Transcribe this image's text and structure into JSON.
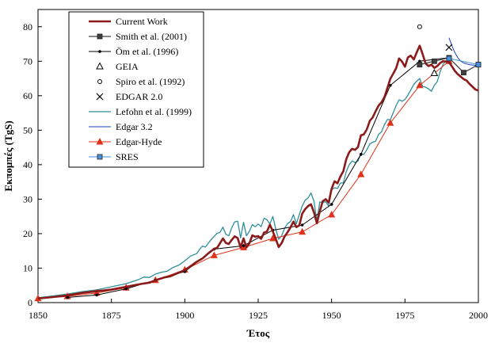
{
  "chart_data": {
    "type": "line",
    "title": "",
    "xlabel": "Έτος",
    "ylabel": "Εκπομπές (TgS)",
    "xlim": [
      1850,
      2000
    ],
    "ylim": [
      0,
      85
    ],
    "xticks": [
      1850,
      1875,
      1900,
      1925,
      1950,
      1975,
      2000
    ],
    "yticks": [
      0,
      10,
      20,
      30,
      40,
      50,
      60,
      70,
      80
    ],
    "grid": false,
    "legend_position": "top-left",
    "series": [
      {
        "name": "Current Work",
        "color": "#8b1a1a",
        "marker": "none",
        "x": [
          1850,
          1855,
          1860,
          1865,
          1870,
          1875,
          1880,
          1885,
          1888,
          1890,
          1893,
          1895,
          1898,
          1900,
          1902,
          1904,
          1906,
          1908,
          1910,
          1911,
          1912,
          1913,
          1914,
          1915,
          1916,
          1917,
          1918,
          1919,
          1920,
          1921,
          1922,
          1923,
          1924,
          1925,
          1926,
          1927,
          1928,
          1929,
          1930,
          1931,
          1932,
          1933,
          1934,
          1935,
          1936,
          1937,
          1938,
          1939,
          1940,
          1941,
          1942,
          1943,
          1944,
          1945,
          1946,
          1947,
          1948,
          1949,
          1950,
          1951,
          1952,
          1953,
          1954,
          1955,
          1956,
          1957,
          1958,
          1959,
          1960,
          1961,
          1962,
          1963,
          1964,
          1965,
          1966,
          1967,
          1968,
          1969,
          1970,
          1971,
          1972,
          1973,
          1974,
          1975,
          1976,
          1977,
          1978,
          1979,
          1980,
          1981,
          1982,
          1983,
          1984,
          1985,
          1986,
          1987,
          1988,
          1989,
          1990,
          1991,
          1992,
          1993,
          1994,
          1995,
          1996,
          1997,
          1998,
          1999,
          2000
        ],
        "y": [
          1.2,
          1.6,
          2.1,
          2.8,
          3.3,
          3.8,
          4.6,
          5.4,
          5.8,
          6.5,
          7.3,
          7.6,
          8.7,
          9.4,
          10.6,
          11.8,
          12.8,
          14.3,
          15.6,
          15.9,
          17.2,
          18.6,
          17.3,
          17.0,
          18.2,
          19.2,
          18.7,
          16.0,
          18.6,
          16.0,
          17.2,
          19.5,
          19.1,
          19.3,
          18.5,
          20.3,
          20.6,
          22.6,
          20.6,
          18.5,
          16.1,
          17.3,
          19.2,
          20.4,
          21.8,
          23.5,
          21.9,
          22.4,
          25.8,
          27.1,
          28.0,
          28.5,
          26.2,
          23.0,
          26.5,
          29.4,
          30.0,
          29.0,
          33.0,
          35.2,
          34.6,
          36.6,
          38.1,
          41.6,
          43.6,
          44.6,
          44.3,
          45.1,
          48.5,
          48.8,
          50.2,
          52.7,
          53.7,
          55.5,
          57.1,
          58.1,
          59.6,
          62.2,
          64.9,
          66.4,
          68.0,
          70.8,
          69.9,
          68.4,
          71.1,
          71.6,
          70.5,
          72.6,
          74.5,
          72.1,
          69.4,
          68.6,
          69.0,
          68.1,
          68.6,
          69.5,
          70.0,
          69.9,
          69.7,
          68.5,
          67.2,
          66.2,
          65.5,
          64.8,
          64.4,
          63.4,
          62.6,
          61.8,
          61.5
        ]
      },
      {
        "name": "Smith et al. (2001)",
        "color": "#404040",
        "marker": "square",
        "x": [
          1980,
          1985,
          1990,
          1995,
          2000
        ],
        "y": [
          69.0,
          70.0,
          71.0,
          66.7,
          69.0
        ]
      },
      {
        "name": "Öm et al. (1996)",
        "color": "#000000",
        "marker": "diamond",
        "x": [
          1860,
          1870,
          1880,
          1890,
          1900,
          1910,
          1920,
          1930,
          1940,
          1950,
          1960,
          1970,
          1980,
          1990
        ],
        "y": [
          1.5,
          2.2,
          4.0,
          6.5,
          9.0,
          15.5,
          16.5,
          21.0,
          22.5,
          28.5,
          43.0,
          63.0,
          70.0,
          71.0
        ]
      },
      {
        "name": "GEIA",
        "color": "#000000",
        "marker": "triangle-open",
        "x": [
          1985
        ],
        "y": [
          66.5
        ]
      },
      {
        "name": "Spiro et al. (1992)",
        "color": "#000000",
        "marker": "circle-open",
        "x": [
          1980
        ],
        "y": [
          80.0
        ]
      },
      {
        "name": "EDGAR 2.0",
        "color": "#000000",
        "marker": "x",
        "x": [
          1990
        ],
        "y": [
          74.0
        ]
      },
      {
        "name": "Lefohn et al. (1999)",
        "color": "#2f8f9a",
        "marker": "none",
        "x": [
          1850,
          1855,
          1860,
          1865,
          1870,
          1875,
          1880,
          1884,
          1886,
          1888,
          1890,
          1892,
          1894,
          1896,
          1898,
          1900,
          1902,
          1904,
          1905,
          1906,
          1907,
          1908,
          1909,
          1910,
          1911,
          1912,
          1913,
          1914,
          1915,
          1916,
          1917,
          1918,
          1919,
          1920,
          1921,
          1922,
          1923,
          1924,
          1925,
          1926,
          1927,
          1928,
          1929,
          1930,
          1931,
          1932,
          1933,
          1934,
          1935,
          1936,
          1937,
          1938,
          1939,
          1940,
          1941,
          1942,
          1943,
          1944,
          1945,
          1946,
          1947,
          1948,
          1949,
          1950,
          1951,
          1952,
          1953,
          1954,
          1955,
          1956,
          1957,
          1958,
          1959,
          1960,
          1961,
          1962,
          1963,
          1964,
          1965,
          1966,
          1967,
          1968,
          1969,
          1970,
          1971,
          1972,
          1973,
          1974,
          1975,
          1976,
          1977,
          1978,
          1979,
          1980,
          1981,
          1982,
          1983,
          1984,
          1985,
          1986,
          1987,
          1988,
          1989,
          1990
        ],
        "y": [
          1.4,
          1.9,
          2.5,
          3.2,
          3.7,
          4.6,
          5.5,
          6.6,
          7.4,
          7.3,
          8.3,
          8.8,
          9.1,
          10.2,
          10.9,
          12.1,
          13.5,
          14.2,
          15.4,
          16.4,
          16.1,
          17.2,
          18.3,
          19.2,
          20.1,
          20.4,
          21.9,
          19.8,
          19.4,
          21.7,
          23.4,
          23.6,
          18.8,
          23.3,
          19.4,
          20.7,
          22.6,
          22.0,
          22.8,
          22.0,
          24.5,
          24.0,
          22.8,
          25.0,
          21.3,
          18.4,
          19.4,
          21.6,
          22.9,
          23.5,
          25.5,
          22.9,
          25.5,
          28.0,
          29.7,
          30.4,
          31.8,
          29.4,
          23.7,
          29.2,
          29.0,
          29.3,
          28.0,
          32.7,
          33.3,
          33.1,
          34.7,
          34.7,
          38.0,
          40.0,
          41.1,
          40.6,
          41.1,
          43.1,
          43.0,
          44.3,
          46.0,
          46.5,
          46.8,
          48.8,
          49.5,
          51.6,
          53.1,
          53.0,
          55.1,
          57.2,
          58.8,
          58.4,
          58.9,
          60.2,
          61.7,
          63.3,
          64.2,
          65.0,
          62.7,
          62.5,
          62.0,
          61.3,
          63.0,
          64.1,
          67.0,
          69.2,
          70.0,
          70.5
        ]
      },
      {
        "name": "Edgar 3.2",
        "color": "#1f3fbf",
        "marker": "none",
        "x": [
          1990,
          1991,
          1992,
          1993,
          1994,
          1995,
          1996,
          1997,
          1998,
          1999,
          2000
        ],
        "y": [
          76.8,
          74.5,
          72.5,
          71.0,
          70.0,
          69.5,
          69.2,
          69.0,
          68.9,
          68.8,
          68.5
        ]
      },
      {
        "name": "Edgar-Hyde",
        "color": "#e0321a",
        "marker": "triangle",
        "x": [
          1850,
          1860,
          1870,
          1880,
          1890,
          1900,
          1910,
          1920,
          1930,
          1940,
          1950,
          1960,
          1970,
          1980,
          1990
        ],
        "y": [
          1.2,
          1.8,
          2.8,
          4.3,
          6.5,
          9.5,
          13.7,
          16.0,
          18.6,
          20.5,
          25.5,
          37.2,
          52.1,
          63.0,
          70.0
        ]
      },
      {
        "name": "SRES",
        "color": "#4a8fe0",
        "marker": "square",
        "x": [
          1990,
          2000
        ],
        "y": [
          70.8,
          69.0
        ]
      }
    ]
  }
}
